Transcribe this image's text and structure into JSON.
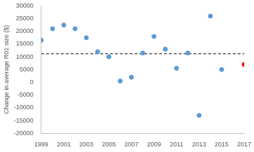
{
  "chart_data": {
    "type": "scatter",
    "y_label": "Change in average R01 size ($)",
    "x": [
      1999,
      2000,
      2001,
      2002,
      2003,
      2004,
      2005,
      2006,
      2007,
      2008,
      2009,
      2010,
      2011,
      2012,
      2013,
      2014,
      2015,
      2017
    ],
    "values": [
      16500,
      21000,
      22500,
      21000,
      17500,
      12000,
      10000,
      500,
      2000,
      11500,
      18000,
      13000,
      5500,
      11500,
      -13000,
      26000,
      5000,
      7000
    ],
    "colors": [
      "#5b9bd5",
      "#5b9bd5",
      "#5b9bd5",
      "#5b9bd5",
      "#5b9bd5",
      "#5b9bd5",
      "#5b9bd5",
      "#5b9bd5",
      "#5b9bd5",
      "#5b9bd5",
      "#5b9bd5",
      "#5b9bd5",
      "#5b9bd5",
      "#5b9bd5",
      "#5b9bd5",
      "#5b9bd5",
      "#5b9bd5",
      "#ff0000"
    ],
    "reference_line": 11200,
    "xlim": [
      1999,
      2017
    ],
    "xticks": [
      1999,
      2001,
      2003,
      2005,
      2007,
      2009,
      2011,
      2013,
      2015,
      2017
    ],
    "ylim": [
      -20000,
      30000
    ],
    "yticks": [
      -20000,
      -15000,
      -10000,
      -5000,
      0,
      5000,
      10000,
      15000,
      20000,
      25000,
      30000
    ],
    "grid": false
  }
}
